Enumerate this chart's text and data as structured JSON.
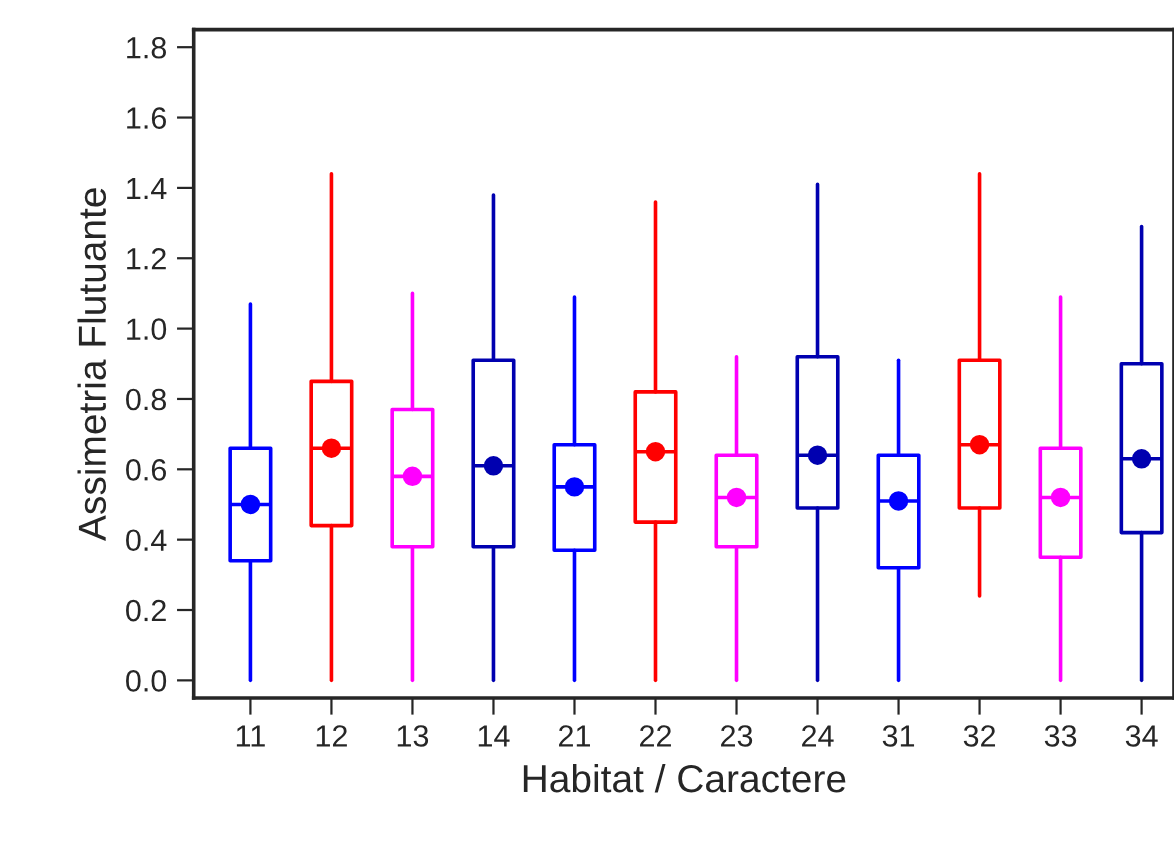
{
  "chart_data": {
    "type": "box",
    "xlabel": "Habitat / Caractere",
    "ylabel": "Assimetria Flutuante",
    "categories": [
      "11",
      "12",
      "13",
      "14",
      "21",
      "22",
      "23",
      "24",
      "31",
      "32",
      "33",
      "34"
    ],
    "colors": [
      "#0000ff",
      "#ff0000",
      "#ff00ff",
      "#0000b0",
      "#0000ff",
      "#ff0000",
      "#ff00ff",
      "#0000b0",
      "#0000ff",
      "#ff0000",
      "#ff00ff",
      "#0000b0"
    ],
    "boxes": [
      {
        "low": 0,
        "q1": 0.34,
        "median": 0.5,
        "q3": 0.66,
        "high": 1.07,
        "mean": 0.5
      },
      {
        "low": 0,
        "q1": 0.44,
        "median": 0.66,
        "q3": 0.85,
        "high": 1.44,
        "mean": 0.66
      },
      {
        "low": 0,
        "q1": 0.38,
        "median": 0.58,
        "q3": 0.77,
        "high": 1.1,
        "mean": 0.58
      },
      {
        "low": 0,
        "q1": 0.38,
        "median": 0.61,
        "q3": 0.91,
        "high": 1.38,
        "mean": 0.61
      },
      {
        "low": 0,
        "q1": 0.37,
        "median": 0.55,
        "q3": 0.67,
        "high": 1.09,
        "mean": 0.55
      },
      {
        "low": 0,
        "q1": 0.45,
        "median": 0.65,
        "q3": 0.82,
        "high": 1.36,
        "mean": 0.65
      },
      {
        "low": 0,
        "q1": 0.38,
        "median": 0.52,
        "q3": 0.64,
        "high": 0.92,
        "mean": 0.52
      },
      {
        "low": 0,
        "q1": 0.49,
        "median": 0.64,
        "q3": 0.92,
        "high": 1.41,
        "mean": 0.64
      },
      {
        "low": 0,
        "q1": 0.32,
        "median": 0.51,
        "q3": 0.64,
        "high": 0.91,
        "mean": 0.51
      },
      {
        "low": 0.24,
        "q1": 0.49,
        "median": 0.67,
        "q3": 0.91,
        "high": 1.44,
        "mean": 0.67
      },
      {
        "low": 0,
        "q1": 0.35,
        "median": 0.52,
        "q3": 0.66,
        "high": 1.09,
        "mean": 0.52
      },
      {
        "low": 0,
        "q1": 0.42,
        "median": 0.63,
        "q3": 0.9,
        "high": 1.29,
        "mean": 0.63
      }
    ],
    "ylim": [
      -0.05,
      1.85
    ],
    "yticks": [
      {
        "value": 0,
        "label": "0.0"
      },
      {
        "value": 0.2,
        "label": "0.2"
      },
      {
        "value": 0.4,
        "label": "0.4"
      },
      {
        "value": 0.6,
        "label": "0.6"
      },
      {
        "value": 0.8,
        "label": "0.8"
      },
      {
        "value": 1.0,
        "label": "1.0"
      },
      {
        "value": 1.2,
        "label": "1.2"
      },
      {
        "value": 1.4,
        "label": "1.4"
      },
      {
        "value": 1.6,
        "label": "1.6"
      },
      {
        "value": 1.8,
        "label": "1.8"
      }
    ],
    "grid": false,
    "legend": false,
    "marker": "circle"
  }
}
